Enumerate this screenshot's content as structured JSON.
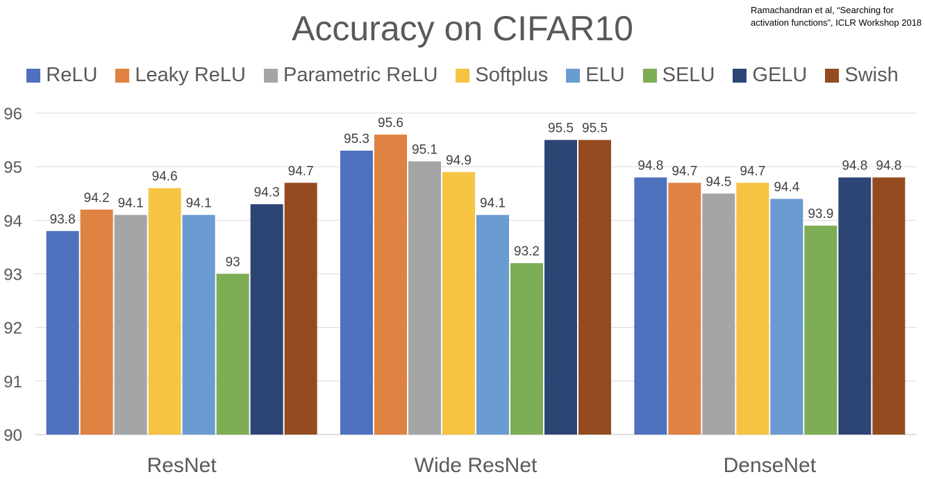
{
  "title": "Accuracy on CIFAR10",
  "citation": "Ramachandran et al, “Searching for\nactivation functions”, ICLR Workshop 2018",
  "chart_data": {
    "type": "bar",
    "title": "Accuracy on CIFAR10",
    "xlabel": "",
    "ylabel": "",
    "ylim": [
      90,
      96
    ],
    "yticks": [
      "90",
      "91",
      "92",
      "93",
      "94",
      "95",
      "96"
    ],
    "grid": true,
    "legend_position": "top",
    "categories": [
      "ResNet",
      "Wide ResNet",
      "DenseNet"
    ],
    "series": [
      {
        "name": "ReLU",
        "color": "#4F71BE",
        "values": [
          93.8,
          95.3,
          94.8
        ],
        "labels": [
          "93.8",
          "95.3",
          "94.8"
        ]
      },
      {
        "name": "Leaky ReLU",
        "color": "#E08242",
        "values": [
          94.2,
          95.6,
          94.7
        ],
        "labels": [
          "94.2",
          "95.6",
          "94.7"
        ]
      },
      {
        "name": "Parametric ReLU",
        "color": "#A5A5A5",
        "values": [
          94.1,
          95.1,
          94.5
        ],
        "labels": [
          "94.1",
          "95.1",
          "94.5"
        ]
      },
      {
        "name": "Softplus",
        "color": "#F6C343",
        "values": [
          94.6,
          94.9,
          94.7
        ],
        "labels": [
          "94.6",
          "94.9",
          "94.7"
        ]
      },
      {
        "name": "ELU",
        "color": "#6A9BD1",
        "values": [
          94.1,
          94.1,
          94.4
        ],
        "labels": [
          "94.1",
          "94.1",
          "94.4"
        ]
      },
      {
        "name": "SELU",
        "color": "#7DAE55",
        "values": [
          93.0,
          93.2,
          93.9
        ],
        "labels": [
          "93",
          "93.2",
          "93.9"
        ]
      },
      {
        "name": "GELU",
        "color": "#2C4575",
        "values": [
          94.3,
          95.5,
          94.8
        ],
        "labels": [
          "94.3",
          "95.5",
          "94.8"
        ]
      },
      {
        "name": "Swish",
        "color": "#954B20",
        "values": [
          94.7,
          95.5,
          94.8
        ],
        "labels": [
          "94.7",
          "95.5",
          "94.8"
        ]
      }
    ]
  }
}
